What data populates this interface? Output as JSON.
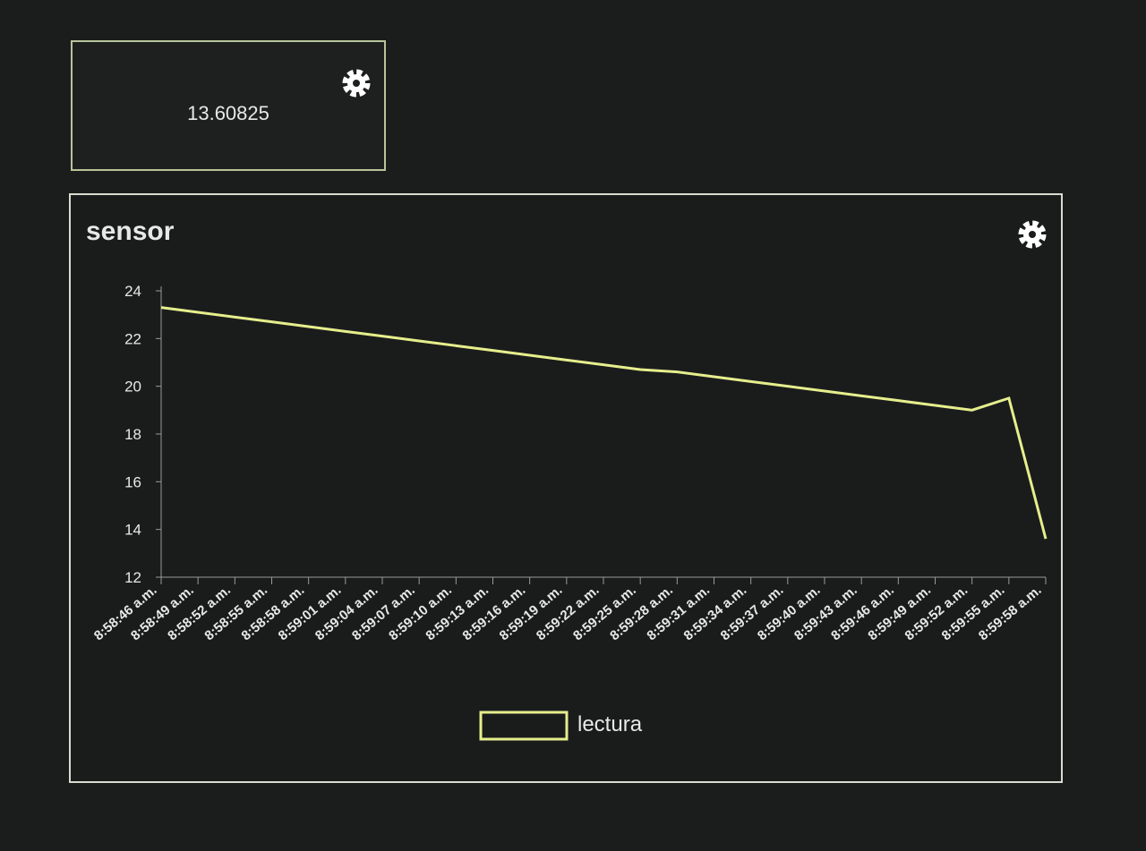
{
  "widget_value": 13.60825,
  "chart_data": {
    "type": "line",
    "title": "sensor",
    "categories": [
      "8:58:46 a.m.",
      "8:58:49 a.m.",
      "8:58:52 a.m.",
      "8:58:55 a.m.",
      "8:58:58 a.m.",
      "8:59:01 a.m.",
      "8:59:04 a.m.",
      "8:59:07 a.m.",
      "8:59:10 a.m.",
      "8:59:13 a.m.",
      "8:59:16 a.m.",
      "8:59:19 a.m.",
      "8:59:22 a.m.",
      "8:59:25 a.m.",
      "8:59:28 a.m.",
      "8:59:31 a.m.",
      "8:59:34 a.m.",
      "8:59:37 a.m.",
      "8:59:40 a.m.",
      "8:59:43 a.m.",
      "8:59:46 a.m.",
      "8:59:49 a.m.",
      "8:59:52 a.m.",
      "8:59:55 a.m.",
      "8:59:58 a.m."
    ],
    "series": [
      {
        "name": "lectura",
        "color": "#e6ee8c",
        "values": [
          23.3,
          23.1,
          22.9,
          22.7,
          22.5,
          22.3,
          22.1,
          21.9,
          21.7,
          21.5,
          21.3,
          21.1,
          20.9,
          20.7,
          20.6,
          20.4,
          20.2,
          20.0,
          19.8,
          19.6,
          19.4,
          19.2,
          19.0,
          19.5,
          13.60825
        ]
      }
    ],
    "ylim": [
      12,
      24
    ],
    "yticks": [
      12,
      14,
      16,
      18,
      20,
      22,
      24
    ]
  }
}
